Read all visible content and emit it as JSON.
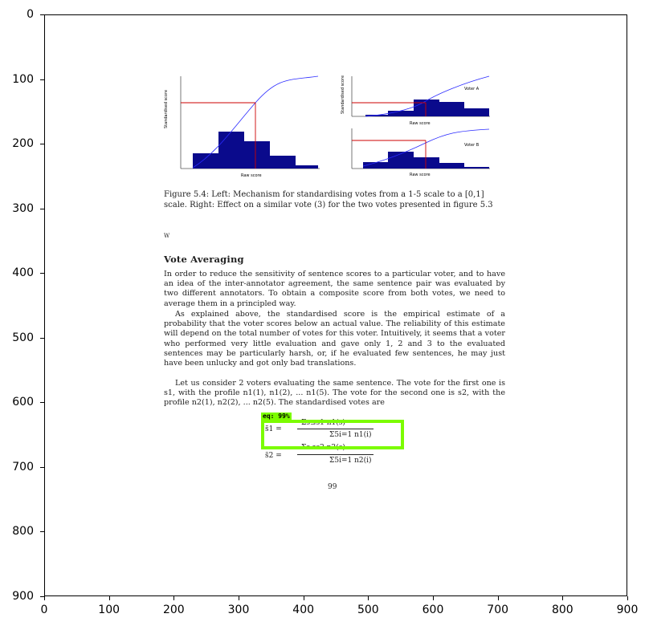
{
  "axes": {
    "x_ticks": [
      "0",
      "100",
      "200",
      "300",
      "400",
      "500",
      "600",
      "700",
      "800",
      "900"
    ],
    "y_ticks": [
      "0",
      "100",
      "200",
      "300",
      "400",
      "500",
      "600",
      "700",
      "800",
      "900"
    ]
  },
  "figure": {
    "left_xlabel": "Raw score",
    "right_top_xlabel": "Raw score",
    "right_bottom_xlabel": "Raw score",
    "left_ylabel": "Standardised score",
    "right_ylabel": "Standardised score",
    "right_top_legend": "Voter A",
    "right_bottom_legend": "Voter B"
  },
  "document": {
    "caption": "Figure 5.4: Left: Mechanism for standardising votes from a 1-5 scale to a [0,1] scale. Right: Effect on a similar vote (3) for the two votes presented in figure 5.3",
    "footnote": "W",
    "heading": "Vote Averaging",
    "para1": "In order to reduce the sensitivity of sentence scores to a particular voter, and to have an idea of the inter-annotator agreement, the same sentence pair was evaluated by two different annotators. To obtain a composite score from both votes, we need to average them in a principled way.",
    "para2": "As explained above, the standardised score is the empirical estimate of a probability that the voter scores below an actual value. The reliability of this estimate will depend on the total number of votes for this voter. Intuitively, it seems that a voter who performed very little evaluation and gave only 1, 2 and 3 to the evaluated sentences may be particularly harsh, or, if he evaluated few sentences, he may just have been unlucky and got only bad translations.",
    "para3": "Let us consider 2 voters evaluating the same sentence. The vote for the first one is s1, with the profile n1(1), n1(2), ... n1(5). The vote for the second one is s2, with the profile n2(1), n2(2), ... n2(5). The standardised votes are",
    "page_number": "99",
    "formula_line1_lhs": "s̃1  =",
    "formula_line1_num": "Σs≤s1 n1(s)",
    "formula_line1_den": "Σ5i=1 n1(i)",
    "formula_line2_lhs": "s̃2  =",
    "formula_line2_num": "Σs≤s2 n2(s)",
    "formula_line2_den": "Σ5i=1 n2(i)"
  },
  "detection": {
    "label": "eq: 99%",
    "color": "#7cfc00"
  },
  "colors": {
    "bar": "#0a0a8c",
    "curve": "#2a2aff",
    "guide": "#cc0000",
    "box": "#7cfc00"
  }
}
